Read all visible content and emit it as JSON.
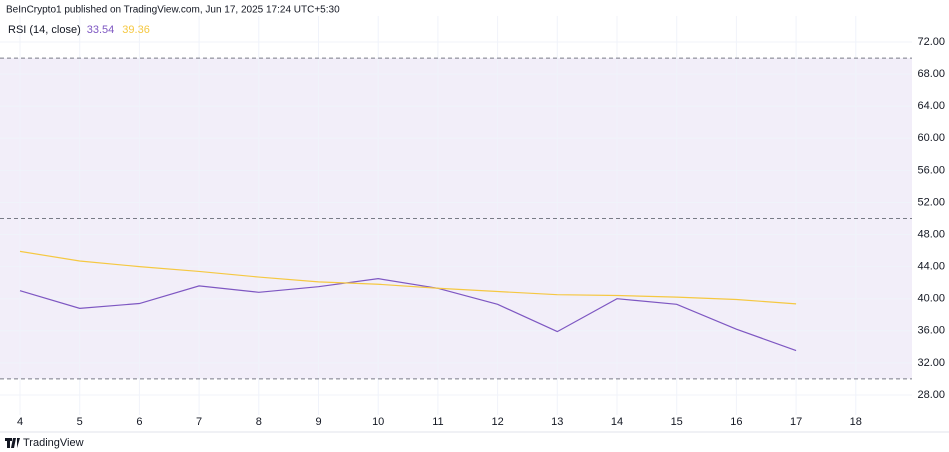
{
  "chart_data": {
    "type": "line",
    "header": "BeInCrypto1 published on TradingView.com, Jun 17, 2025 17:24 UTC+5:30",
    "indicator": "RSI (14, close)",
    "footer": "TradingView",
    "categories": [
      "4",
      "5",
      "6",
      "7",
      "8",
      "9",
      "10",
      "11",
      "12",
      "13",
      "14",
      "15",
      "16",
      "17",
      "18"
    ],
    "series": [
      {
        "name": "33.54",
        "color": "#7e57c2",
        "values": [
          41.0,
          38.8,
          39.4,
          41.6,
          40.8,
          41.5,
          42.5,
          41.3,
          39.3,
          35.9,
          40.0,
          39.3,
          36.2,
          33.54,
          null
        ]
      },
      {
        "name": "39.36",
        "color": "#f5c842",
        "values": [
          45.9,
          44.7,
          44.0,
          43.4,
          42.7,
          42.1,
          41.8,
          41.3,
          40.9,
          40.5,
          40.4,
          40.2,
          39.9,
          39.36,
          null
        ]
      }
    ],
    "ylim": [
      26,
      74
    ],
    "yticks": [
      {
        "value": 28,
        "label": "28.00"
      },
      {
        "value": 32,
        "label": "32.00"
      },
      {
        "value": 36,
        "label": "36.00"
      },
      {
        "value": 40,
        "label": "40.00"
      },
      {
        "value": 44,
        "label": "44.00"
      },
      {
        "value": 48,
        "label": "48.00"
      },
      {
        "value": 52,
        "label": "52.00"
      },
      {
        "value": 56,
        "label": "56.00"
      },
      {
        "value": 60,
        "label": "60.00"
      },
      {
        "value": 64,
        "label": "64.00"
      },
      {
        "value": 68,
        "label": "68.00"
      },
      {
        "value": 72,
        "label": "72.00"
      }
    ],
    "band": {
      "upper": 70,
      "middle": 50,
      "lower": 30,
      "color": "#7e57c2"
    },
    "grid": true
  }
}
